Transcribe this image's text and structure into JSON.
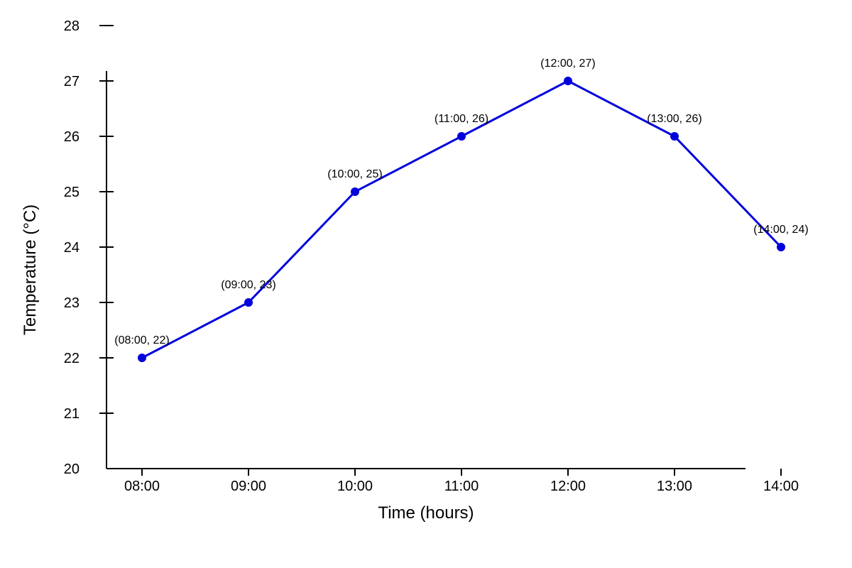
{
  "chart_data": {
    "type": "line",
    "title": "",
    "xlabel": "Time (hours)",
    "ylabel": "Temperature (°C)",
    "categories": [
      "08:00",
      "09:00",
      "10:00",
      "11:00",
      "12:00",
      "13:00",
      "14:00"
    ],
    "series": [
      {
        "values": [
          22,
          23,
          25,
          26,
          27,
          26,
          24
        ],
        "color": "#0000dd",
        "data_labels": [
          "(08:00, 22)",
          "(09:00, 23)",
          "(10:00, 25)",
          "(11:00, 26)",
          "(12:00, 27)",
          "(13:00, 26)",
          "(14:00, 24)"
        ]
      }
    ],
    "yticks": [
      "20",
      "21",
      "22",
      "23",
      "24",
      "25",
      "26",
      "27",
      "28"
    ],
    "ylim": [
      20,
      28
    ],
    "grid": false,
    "legend": "none",
    "axis_color": "#000000"
  }
}
